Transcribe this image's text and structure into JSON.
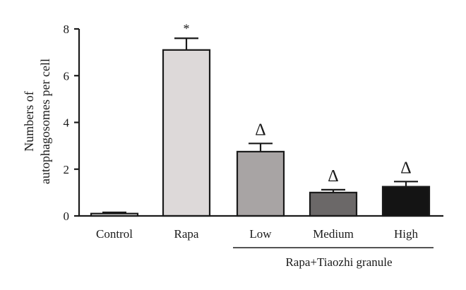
{
  "chart_data": {
    "type": "bar",
    "categories": [
      "Control",
      "Rapa",
      "Low",
      "Medium",
      "High"
    ],
    "values": [
      0.1,
      7.1,
      2.75,
      1.0,
      1.25
    ],
    "errors": [
      0.05,
      0.5,
      0.35,
      0.12,
      0.22
    ],
    "bar_colors": [
      "#ffffff",
      "#ddd9d9",
      "#a8a4a4",
      "#6b6868",
      "#141414"
    ],
    "annotations": [
      "",
      "*",
      "Δ",
      "Δ",
      "Δ"
    ],
    "group_label": "Rapa+Tiaozhi granule",
    "group_categories": [
      "Low",
      "Medium",
      "High"
    ],
    "ylabel_lines": [
      "Numbers of",
      "autophagosomes per cell"
    ],
    "xlabel": "",
    "ylim": [
      0,
      8
    ],
    "yticks": [
      0,
      2,
      4,
      6,
      8
    ],
    "grid": false,
    "legend": "none"
  }
}
